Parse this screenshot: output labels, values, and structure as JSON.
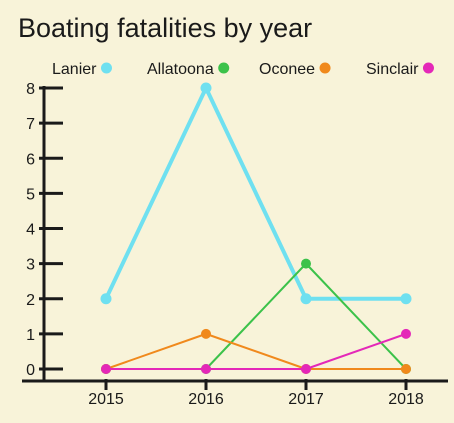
{
  "chart_data": {
    "type": "line",
    "title": "Boating fatalities by year",
    "xlabel": "",
    "ylabel": "",
    "categories": [
      "2015",
      "2016",
      "2017",
      "2018"
    ],
    "ylim": [
      0,
      8
    ],
    "yticks": [
      "0",
      "1",
      "2",
      "3",
      "4",
      "5",
      "6",
      "7",
      "8"
    ],
    "grid": false,
    "legend_position": "top",
    "series": [
      {
        "name": "Lanier",
        "color": "#6fe0f0",
        "values": [
          2,
          8,
          2,
          2
        ]
      },
      {
        "name": "Allatoona",
        "color": "#3cc24a",
        "values": [
          0,
          0,
          3,
          0
        ]
      },
      {
        "name": "Oconee",
        "color": "#f0891c",
        "values": [
          0,
          1,
          0,
          0
        ]
      },
      {
        "name": "Sinclair",
        "color": "#e428b8",
        "values": [
          0,
          0,
          0,
          1
        ]
      }
    ]
  }
}
